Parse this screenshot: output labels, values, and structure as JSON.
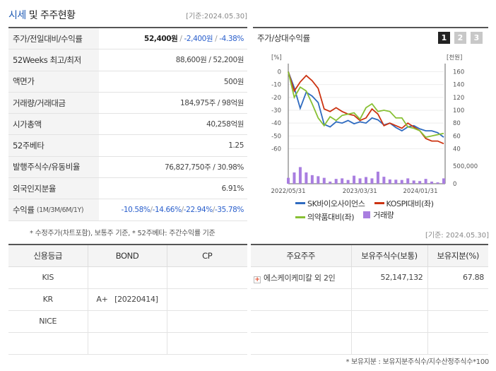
{
  "header": {
    "title_main": "시세",
    "title_rest": " 및 주주현황",
    "date": "[기준:2024.05.30]"
  },
  "stats": [
    {
      "label": "주가/전일대비/수익률",
      "price": "52,400원",
      "change": "-2,400원",
      "rate": "-4.38%"
    },
    {
      "label": "52Weeks 최고/최저",
      "value": "88,600원 / 52,200원"
    },
    {
      "label": "액면가",
      "value": "500원"
    },
    {
      "label": "거래량/거래대금",
      "value": "184,975주 / 98억원"
    },
    {
      "label": "시가총액",
      "value": "40,258억원"
    },
    {
      "label": "52주베타",
      "value": "1.25"
    },
    {
      "label": "발행주식수/유동비율",
      "value": "76,827,750주 / 30.98%"
    },
    {
      "label": "외국인지분율",
      "value": "6.91%"
    },
    {
      "label": "수익률",
      "label_small": "(1M/3M/6M/1Y)",
      "r1": "-10.58%",
      "r2": "-14.66%",
      "r3": "-22.94%",
      "r4": "-35.78%"
    }
  ],
  "notes": {
    "left": "* 수정주가(차트포함), 보통주 기준, * 52주베타: 주간수익률 기준",
    "right_date": "[기준: 2024.05.30]",
    "bottom": "* 보유지분 : 보유지분주식수/지수산정주식수*100"
  },
  "chart_panel": {
    "title": "주가/상대수익률",
    "buttons": [
      "1",
      "2",
      "3"
    ],
    "left_unit": "[%]",
    "right_unit": "[천원]"
  },
  "chart_data": {
    "type": "line",
    "x_ticks": [
      "2022/05/31",
      "2023/03/31",
      "2024/01/31"
    ],
    "y_left_ticks": [
      "0",
      "-10",
      "-20",
      "-30",
      "-40",
      "-50",
      "-60"
    ],
    "y_right_ticks": [
      "160",
      "140",
      "120",
      "100",
      "80",
      "60",
      "40"
    ],
    "volume_tick": "500,000",
    "volume_zero": "0",
    "ylim_left": [
      -63,
      3
    ],
    "ylim_right": [
      34,
      166
    ],
    "colors": {
      "sk": "#2f6bc0",
      "kospi": "#cc3311",
      "pharma": "#88c034",
      "volume": "#a97ee0"
    },
    "series": [
      {
        "name": "SK바이오사이언스",
        "axis": "right",
        "values": [
          160,
          135,
          103,
          128,
          122,
          112,
          78,
          74,
          82,
          80,
          84,
          79,
          82,
          80,
          88,
          85,
          77,
          80,
          73,
          68,
          74,
          76,
          71,
          68,
          68,
          65,
          58
        ]
      },
      {
        "name": "KOSPI대비(좌)",
        "axis": "left",
        "values": [
          0,
          -15,
          -8,
          -3,
          -7,
          -13,
          -29,
          -31,
          -28,
          -31,
          -33,
          -34,
          -38,
          -36,
          -29,
          -33,
          -42,
          -40,
          -42,
          -44,
          -40,
          -43,
          -46,
          -52,
          -54,
          -54,
          -56
        ]
      },
      {
        "name": "의약품대비(좌)",
        "axis": "left",
        "values": [
          0,
          -20,
          -12,
          -15,
          -25,
          -36,
          -42,
          -35,
          -38,
          -34,
          -33,
          -32,
          -37,
          -28,
          -25,
          -31,
          -30,
          -31,
          -36,
          -36,
          -43,
          -44,
          -46,
          -51,
          -50,
          -49,
          -48
        ]
      }
    ],
    "volume": {
      "name": "거래량",
      "values": [
        0.22,
        0.42,
        0.62,
        0.42,
        0.32,
        0.28,
        0.22,
        0.08,
        0.18,
        0.2,
        0.14,
        0.3,
        0.2,
        0.25,
        0.2,
        0.45,
        0.26,
        0.16,
        0.15,
        0.14,
        0.2,
        0.12,
        0.1,
        0.18,
        0.08,
        0.05,
        0.2
      ]
    }
  },
  "credit_table": {
    "headers": [
      "신용등급",
      "BOND",
      "CP"
    ],
    "rows": [
      [
        "KIS",
        "",
        ""
      ],
      [
        "KR",
        "A+   [20220414]",
        ""
      ],
      [
        "NICE",
        "",
        ""
      ],
      [
        "",
        "",
        ""
      ]
    ]
  },
  "holders_table": {
    "headers": [
      "주요주주",
      "보유주식수(보통)",
      "보유지분(%)"
    ],
    "rows": [
      {
        "name": "에스케이케미칼 외 2인",
        "shares": "52,147,132",
        "pct": "67.88"
      },
      {
        "name": "",
        "shares": "",
        "pct": ""
      },
      {
        "name": "",
        "shares": "",
        "pct": ""
      },
      {
        "name": "",
        "shares": "",
        "pct": ""
      }
    ]
  }
}
